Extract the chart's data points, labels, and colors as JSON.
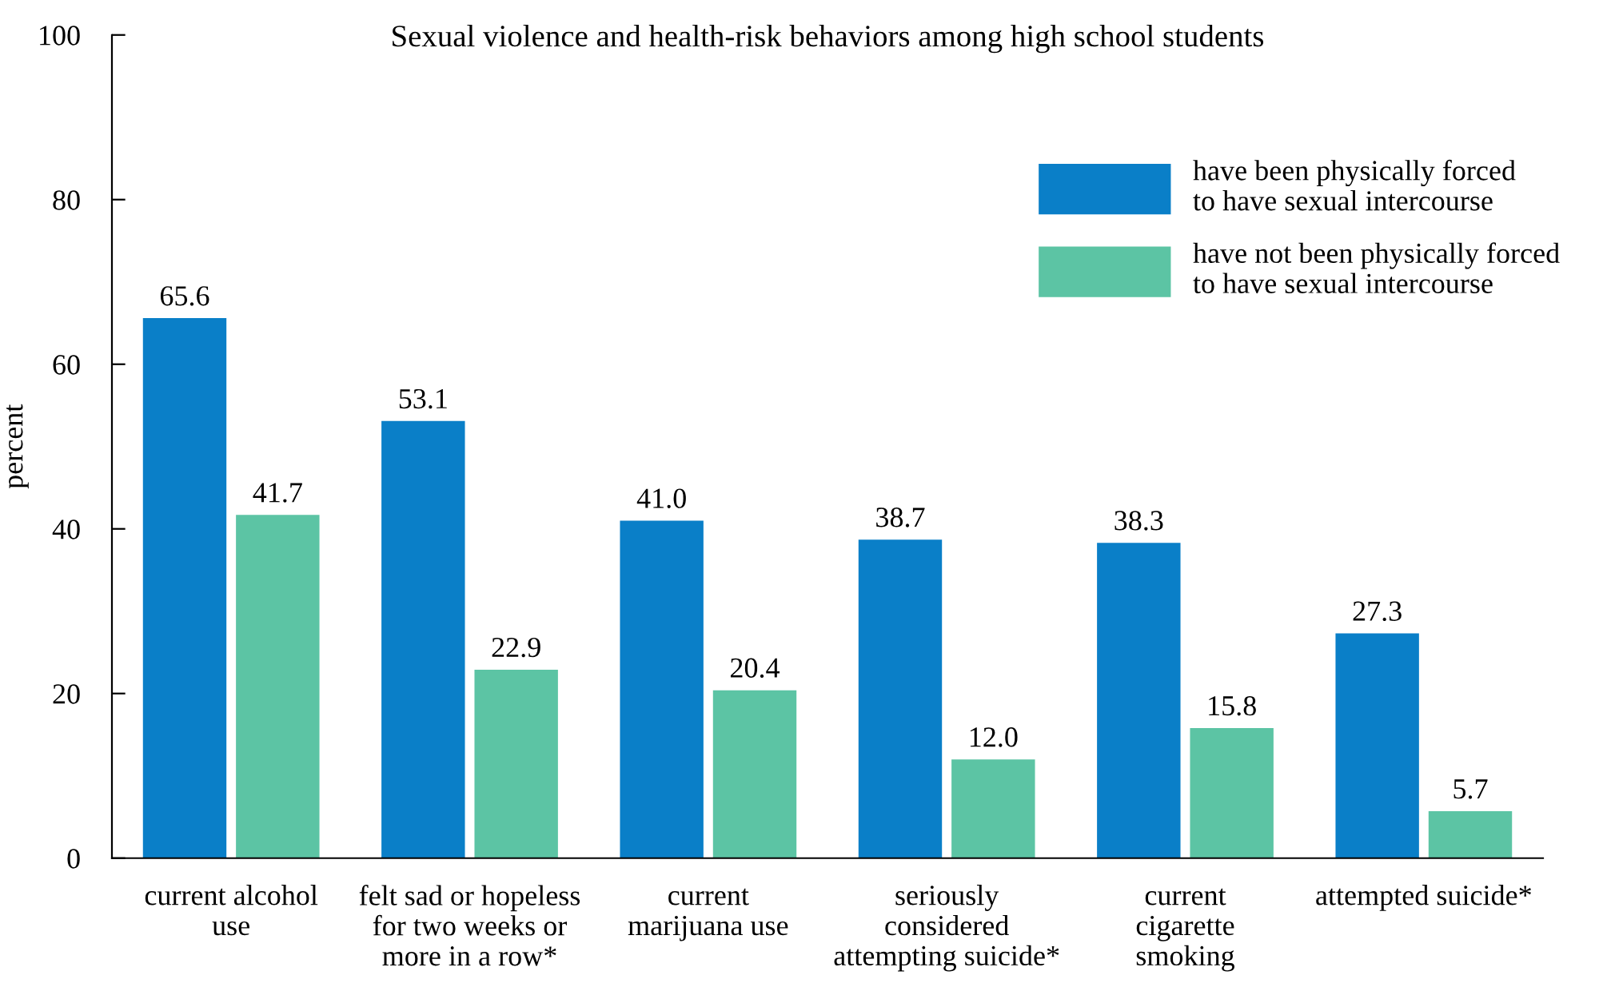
{
  "chart_data": {
    "type": "bar",
    "title": "Sexual violence and health-risk behaviors among high school students",
    "ylabel": "percent",
    "categories": [
      "current alcohol\nuse",
      "felt sad or hopeless\nfor two weeks or\nmore in a row*",
      "current\nmarijuana use",
      "seriously\nconsidered\nattempting suicide*",
      "current\ncigarette\nsmoking",
      "attempted suicide*"
    ],
    "series": [
      {
        "name": "have been physically forced\nto have sexual intercourse",
        "color": "#0a7fc8",
        "values": [
          65.6,
          53.1,
          41.0,
          38.7,
          38.3,
          27.3
        ],
        "value_labels": [
          "65.6",
          "53.1",
          "41.0",
          "38.7",
          "38.3",
          "27.3"
        ]
      },
      {
        "name": "have not been physically forced\nto have sexual intercourse",
        "color": "#5cc4a4",
        "values": [
          41.7,
          22.9,
          20.4,
          12.0,
          15.8,
          5.7
        ],
        "value_labels": [
          "41.7",
          "22.9",
          "20.4",
          "12.0",
          "15.8",
          "5.7"
        ]
      }
    ],
    "ylim": [
      0,
      100
    ],
    "yticks": [
      0,
      20,
      40,
      60,
      80,
      100
    ],
    "grid": false,
    "legend": "top right"
  }
}
